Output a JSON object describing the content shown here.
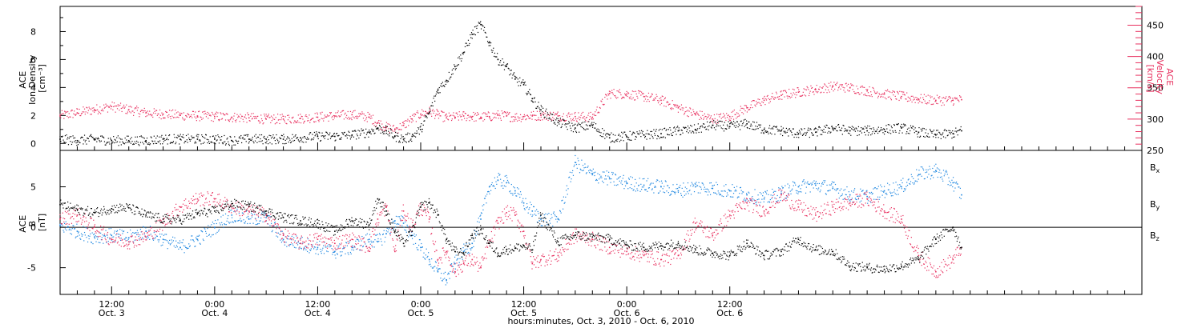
{
  "chart_data": [
    {
      "type": "scatter",
      "panel": "top",
      "ylabel_left": "ACE Ion Density [cm⁻³]",
      "ylabel_left_lines": [
        "ACE",
        "Ion Density",
        "[cm⁻³]"
      ],
      "ylabel_right_lines": [
        "ACE",
        "Velocity",
        "[km/s]"
      ],
      "ylim_left": [
        -0.5,
        9.8
      ],
      "yticks_left": [
        0,
        2,
        4,
        6,
        8
      ],
      "ylim_right": [
        250,
        480
      ],
      "yticks_right": [
        250,
        300,
        350,
        400,
        450
      ],
      "colors": {
        "density": "#000000",
        "velocity": "#e8305f"
      },
      "series": [
        {
          "key": "density",
          "axis": "left",
          "color": "#000000",
          "x": [
            0,
            2,
            4,
            6,
            8,
            10,
            12,
            14,
            16,
            18,
            20,
            22,
            24,
            26,
            28,
            30,
            32,
            34,
            36,
            37,
            38,
            39,
            40,
            41,
            42,
            43,
            44,
            45,
            46,
            47,
            48,
            49,
            50,
            51,
            52,
            53,
            54,
            55,
            56,
            58,
            60,
            62,
            64,
            66,
            68,
            70,
            72,
            74,
            76,
            78,
            80,
            82,
            84,
            86,
            88,
            90,
            92,
            94,
            96,
            98,
            100,
            102,
            104,
            105
          ],
          "y": [
            0.3,
            0.2,
            0.3,
            0.2,
            0.2,
            0.2,
            0.3,
            0.3,
            0.3,
            0.3,
            0.2,
            0.3,
            0.3,
            0.3,
            0.4,
            0.5,
            0.5,
            0.6,
            0.8,
            1.1,
            0.9,
            0.5,
            0.3,
            0.5,
            1.0,
            2.2,
            3.8,
            4.5,
            5.5,
            6.5,
            7.8,
            8.5,
            7.2,
            6.0,
            5.5,
            4.6,
            4.2,
            3.2,
            2.4,
            1.5,
            1.1,
            1.3,
            0.4,
            0.5,
            0.6,
            0.7,
            0.9,
            1.0,
            1.3,
            1.2,
            1.4,
            1.0,
            0.9,
            0.7,
            0.8,
            1.1,
            0.9,
            0.9,
            1.0,
            1.1,
            0.8,
            0.6,
            0.7,
            0.9
          ]
        },
        {
          "key": "velocity",
          "axis": "right",
          "color": "#e8305f",
          "x": [
            0,
            2,
            4,
            6,
            8,
            10,
            12,
            14,
            16,
            18,
            20,
            22,
            24,
            26,
            28,
            30,
            32,
            34,
            36,
            37,
            38,
            39,
            40,
            41,
            42,
            43,
            44,
            45,
            46,
            47,
            48,
            49,
            50,
            51,
            52,
            53,
            54,
            55,
            56,
            58,
            60,
            62,
            64,
            66,
            68,
            70,
            72,
            74,
            76,
            78,
            80,
            82,
            84,
            86,
            88,
            90,
            92,
            94,
            96,
            98,
            100,
            102,
            104,
            105
          ],
          "y": [
            305,
            310,
            315,
            320,
            315,
            310,
            308,
            306,
            305,
            304,
            303,
            302,
            300,
            300,
            301,
            303,
            305,
            307,
            303,
            294,
            287,
            283,
            290,
            300,
            308,
            312,
            307,
            302,
            303,
            305,
            304,
            303,
            304,
            306,
            305,
            303,
            304,
            305,
            306,
            305,
            304,
            303,
            341,
            340,
            336,
            330,
            318,
            308,
            300,
            304,
            318,
            330,
            338,
            343,
            347,
            352,
            350,
            345,
            340,
            336,
            332,
            330,
            330,
            331
          ]
        }
      ]
    },
    {
      "type": "scatter",
      "panel": "bottom",
      "ylabel_left": "ACE B [nT]",
      "ylabel_left_lines": [
        "ACE",
        "B",
        "[nT]"
      ],
      "ylim": [
        -8.3,
        9.5
      ],
      "yticks": [
        -5,
        0,
        5
      ],
      "zero_line": true,
      "legend_position": "right",
      "legend": [
        {
          "label": "B",
          "sub": "x",
          "color": "#000000"
        },
        {
          "label": "B",
          "sub": "y",
          "color": "#1f87e0"
        },
        {
          "label": "B",
          "sub": "z",
          "color": "#e8305f"
        }
      ],
      "series": [
        {
          "key": "bx",
          "color": "#000000",
          "x": [
            0,
            2,
            4,
            6,
            8,
            10,
            12,
            14,
            16,
            18,
            20,
            22,
            24,
            26,
            28,
            30,
            32,
            34,
            36,
            37,
            38,
            39,
            40,
            41,
            42,
            43,
            44,
            45,
            46,
            47,
            48,
            49,
            50,
            51,
            52,
            53,
            54,
            55,
            56,
            58,
            60,
            62,
            64,
            66,
            68,
            70,
            72,
            74,
            76,
            78,
            80,
            82,
            84,
            86,
            88,
            90,
            92,
            94,
            96,
            98,
            100,
            102,
            104,
            105
          ],
          "y": [
            2.8,
            2.2,
            1.8,
            2.3,
            2.4,
            1.5,
            1.0,
            0.9,
            1.7,
            2.0,
            2.9,
            2.6,
            2.0,
            1.2,
            0.8,
            0.5,
            -0.5,
            0.8,
            0.3,
            3.5,
            2.0,
            -0.5,
            -2.0,
            -0.5,
            2.5,
            3.0,
            1.5,
            -1.5,
            -3.0,
            -3.2,
            -1.0,
            -0.3,
            -2.0,
            -3.2,
            -2.8,
            -2.6,
            -2.3,
            -2.8,
            1.5,
            -1.8,
            -1.0,
            -1.2,
            -1.5,
            -2.2,
            -2.5,
            -2.3,
            -2.0,
            -2.8,
            -3.2,
            -3.5,
            -2.0,
            -3.5,
            -3.0,
            -1.5,
            -2.8,
            -3.0,
            -4.8,
            -5.0,
            -5.2,
            -4.8,
            -4.0,
            -1.5,
            0.0,
            -2.5
          ]
        },
        {
          "key": "by",
          "color": "#1f87e0",
          "x": [
            0,
            2,
            4,
            6,
            8,
            10,
            12,
            14,
            16,
            18,
            20,
            22,
            24,
            26,
            28,
            30,
            32,
            34,
            36,
            37,
            38,
            39,
            40,
            41,
            42,
            43,
            44,
            45,
            46,
            47,
            48,
            49,
            50,
            51,
            52,
            53,
            54,
            55,
            56,
            58,
            60,
            62,
            64,
            66,
            68,
            70,
            72,
            74,
            76,
            78,
            80,
            82,
            84,
            86,
            88,
            90,
            92,
            94,
            96,
            98,
            100,
            102,
            104,
            105
          ],
          "y": [
            0.2,
            -0.5,
            -1.2,
            -1.0,
            -1.3,
            -0.5,
            -1.5,
            -2.5,
            -1.5,
            0.0,
            1.5,
            1.0,
            1.2,
            -1.5,
            -2.0,
            -2.5,
            -3.0,
            -2.5,
            -1.5,
            -1.8,
            -0.8,
            0.8,
            0.5,
            -1.0,
            -2.5,
            -4.0,
            -5.5,
            -6.5,
            -4.5,
            -3.0,
            -2.0,
            1.0,
            5.0,
            5.8,
            5.5,
            4.5,
            3.0,
            2.0,
            1.0,
            1.0,
            8.0,
            6.5,
            6.0,
            5.5,
            5.2,
            5.0,
            4.5,
            5.0,
            4.8,
            4.5,
            4.0,
            3.5,
            4.2,
            5.0,
            5.2,
            4.8,
            4.0,
            3.8,
            4.5,
            5.0,
            6.5,
            7.0,
            5.5,
            4.0
          ]
        },
        {
          "key": "bz",
          "color": "#e8305f",
          "x": [
            0,
            2,
            4,
            6,
            8,
            10,
            12,
            14,
            16,
            18,
            20,
            22,
            24,
            26,
            28,
            30,
            32,
            34,
            36,
            37,
            38,
            39,
            40,
            41,
            42,
            43,
            44,
            45,
            46,
            47,
            48,
            49,
            50,
            51,
            52,
            53,
            54,
            55,
            56,
            58,
            60,
            62,
            64,
            66,
            68,
            70,
            72,
            74,
            76,
            78,
            80,
            82,
            84,
            86,
            88,
            90,
            92,
            94,
            96,
            98,
            100,
            102,
            104,
            105
          ],
          "y": [
            1.0,
            1.5,
            0.0,
            -1.5,
            -1.8,
            -1.2,
            0.5,
            2.5,
            3.5,
            3.5,
            2.5,
            2.0,
            1.5,
            -1.0,
            -2.0,
            -1.5,
            -2.0,
            -1.5,
            -2.5,
            1.0,
            2.5,
            -3.0,
            2.0,
            0.0,
            2.5,
            1.0,
            -4.0,
            -3.0,
            -5.5,
            -4.5,
            -4.0,
            -5.0,
            -2.0,
            0.5,
            1.8,
            1.5,
            -0.5,
            -4.5,
            -4.0,
            -3.5,
            -1.0,
            -1.5,
            -2.5,
            -3.0,
            -3.5,
            -4.0,
            -3.5,
            0.5,
            -1.0,
            1.5,
            3.0,
            2.0,
            4.0,
            2.5,
            1.5,
            2.5,
            3.0,
            3.5,
            2.0,
            1.0,
            -3.5,
            -5.5,
            -4.0,
            -2.5
          ]
        }
      ]
    }
  ],
  "x_axis": {
    "x_unit": "hours from Oct. 3, 2010 06:00 UT",
    "xlim": [
      0,
      126
    ],
    "ticks": [
      {
        "x": 6,
        "label": "12:00",
        "day": "Oct. 3"
      },
      {
        "x": 18,
        "label": "0:00",
        "day": "Oct. 4"
      },
      {
        "x": 30,
        "label": "12:00",
        "day": "Oct. 4"
      },
      {
        "x": 42,
        "label": "0:00",
        "day": "Oct. 5"
      },
      {
        "x": 54,
        "label": "12:00",
        "day": "Oct. 5"
      },
      {
        "x": 66,
        "label": "0:00",
        "day": "Oct. 6"
      },
      {
        "x": 78,
        "label": "12:00",
        "day": "Oct. 6"
      }
    ],
    "title": "hours:minutes, Oct.  3, 2010 - Oct.  6, 2010"
  }
}
